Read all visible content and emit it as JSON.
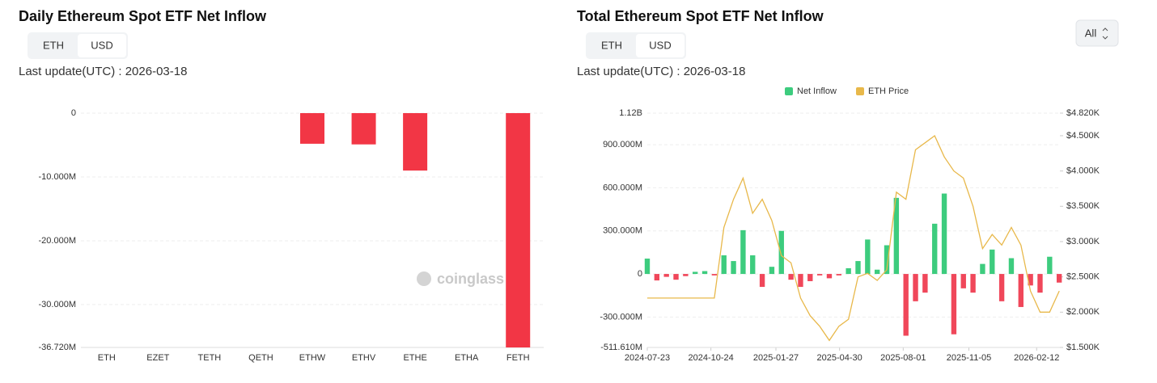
{
  "chart_data": [
    {
      "type": "bar",
      "title": "Daily Ethereum Spot ETF Net Inflow",
      "categories": [
        "ETH",
        "EZET",
        "TETH",
        "QETH",
        "ETHW",
        "ETHV",
        "ETHE",
        "ETHA",
        "FETH"
      ],
      "values": [
        0,
        0,
        0,
        0,
        -4800000,
        -4900000,
        -9000000,
        0,
        -36720000
      ],
      "color": "#f23645",
      "ylim": [
        -36720000,
        0
      ],
      "yticks": [
        0,
        {
          "value": -10000000,
          "label": "-10.000M"
        },
        {
          "value": -20000000,
          "label": "-20.000M"
        },
        {
          "value": -30000000,
          "label": "-30.000M"
        },
        {
          "value": -36720000,
          "label": "-36.720M"
        }
      ],
      "grid": true
    },
    {
      "type": "combo",
      "title": "Total Ethereum Spot ETF Net Inflow",
      "legend": "top",
      "x": [
        "2024-07-23",
        "2024-08-06",
        "2024-08-20",
        "2024-09-03",
        "2024-09-17",
        "2024-10-01",
        "2024-10-15",
        "2024-10-29",
        "2024-11-12",
        "2024-11-26",
        "2024-12-10",
        "2024-12-24",
        "2025-01-07",
        "2025-01-21",
        "2025-02-04",
        "2025-02-18",
        "2025-03-04",
        "2025-03-18",
        "2025-04-01",
        "2025-04-15",
        "2025-04-29",
        "2025-05-13",
        "2025-05-27",
        "2025-06-10",
        "2025-06-24",
        "2025-07-08",
        "2025-07-22",
        "2025-08-05",
        "2025-08-19",
        "2025-09-02",
        "2025-09-16",
        "2025-09-30",
        "2025-10-14",
        "2025-10-28",
        "2025-11-11",
        "2025-11-25",
        "2025-12-09",
        "2025-12-23",
        "2026-01-06",
        "2026-01-20",
        "2026-02-03",
        "2026-02-17",
        "2026-03-03",
        "2026-03-17"
      ],
      "xlim": [
        "2024-07-23",
        "2026-03-18"
      ],
      "xticks": [
        "2024-07-23",
        "2024-10-24",
        "2025-01-27",
        "2025-04-30",
        "2025-08-01",
        "2025-11-05",
        "2026-02-12"
      ],
      "series": [
        {
          "name": "Net Inflow",
          "type": "bar",
          "color": "#3dcc7e",
          "negative_color": "#f0475a",
          "values": [
            107000000,
            -45000000,
            -20000000,
            -40000000,
            -15000000,
            15000000,
            20000000,
            -10000000,
            130000000,
            90000000,
            305000000,
            130000000,
            -90000000,
            50000000,
            300000000,
            -40000000,
            -90000000,
            -50000000,
            -10000000,
            -30000000,
            -10000000,
            40000000,
            90000000,
            240000000,
            30000000,
            200000000,
            530000000,
            -430000000,
            -190000000,
            -130000000,
            350000000,
            560000000,
            -420000000,
            -100000000,
            -130000000,
            70000000,
            170000000,
            -190000000,
            110000000,
            -230000000,
            -80000000,
            -130000000,
            120000000,
            -60000000
          ]
        },
        {
          "name": "ETH Price",
          "type": "line",
          "axis": "y2",
          "color": "#e8b84a",
          "values": [
            2200,
            2200,
            2200,
            2200,
            2200,
            2200,
            2200,
            2200,
            3200,
            3600,
            3900,
            3400,
            3600,
            3300,
            2800,
            2700,
            2200,
            1950,
            1800,
            1600,
            1800,
            1900,
            2500,
            2550,
            2450,
            2600,
            3700,
            3600,
            4300,
            4400,
            4500,
            4200,
            4000,
            3900,
            3500,
            2900,
            3100,
            2950,
            3200,
            2950,
            2300,
            2000,
            2000,
            2300
          ]
        }
      ],
      "ylim": [
        -511610000,
        1120000000
      ],
      "yticks": [
        {
          "value": 1120000000,
          "label": "1.12B"
        },
        {
          "value": 900000000,
          "label": "900.000M"
        },
        {
          "value": 600000000,
          "label": "600.000M"
        },
        {
          "value": 300000000,
          "label": "300.000M"
        },
        0,
        {
          "value": -300000000,
          "label": "-300.000M"
        },
        {
          "value": -511610000,
          "label": "-511.610M"
        }
      ],
      "y2lim": [
        1500,
        4820
      ],
      "y2ticks": [
        {
          "value": 4820,
          "label": "$4.820K"
        },
        {
          "value": 4500,
          "label": "$4.500K"
        },
        {
          "value": 4000,
          "label": "$4.000K"
        },
        {
          "value": 3500,
          "label": "$3.500K"
        },
        {
          "value": 3000,
          "label": "$3.000K"
        },
        {
          "value": 2500,
          "label": "$2.500K"
        },
        {
          "value": 2000,
          "label": "$2.000K"
        },
        {
          "value": 1500,
          "label": "$1.500K"
        }
      ],
      "grid": true
    }
  ],
  "panels": [
    {
      "toggle": [
        "ETH",
        "USD"
      ],
      "last_update": "Last update(UTC) : 2026-03-18"
    },
    {
      "toggle": [
        "ETH",
        "USD"
      ],
      "last_update": "Last update(UTC) : 2026-03-18"
    }
  ],
  "range_select": "All",
  "watermark": "coinglass"
}
